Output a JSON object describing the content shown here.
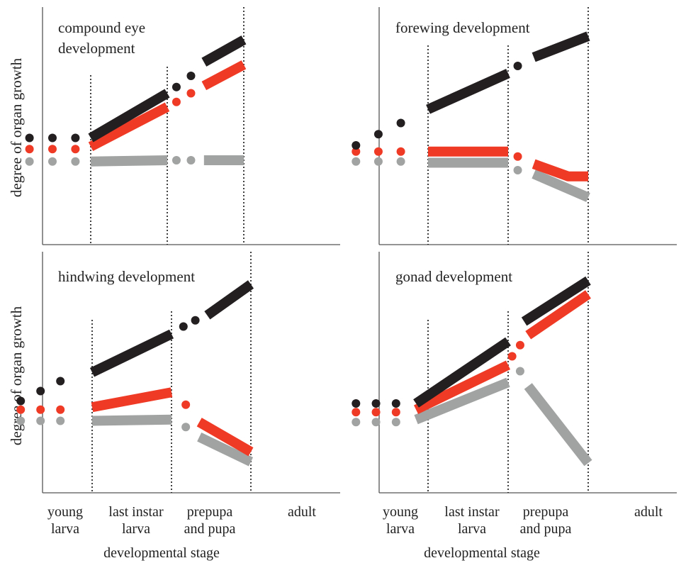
{
  "chart_data": {
    "type": "line",
    "ylabel": "degree of organ growth",
    "xlabel": "developmental stage",
    "stages": [
      {
        "key": "young",
        "lines": [
          "young",
          "larva"
        ]
      },
      {
        "key": "last",
        "lines": [
          "last instar",
          "larva"
        ]
      },
      {
        "key": "prepupa",
        "lines": [
          "prepupa",
          "and pupa"
        ]
      },
      {
        "key": "adult",
        "lines": [
          "adult"
        ]
      }
    ],
    "x_scale_note": "x in stage units: 0 = start of young larva, 1 = start of last instar larva, 2 = start of prepupa and pupa, 3 = adult",
    "colors": {
      "black": "#231f20",
      "red": "#ef3b26",
      "grey": "#a1a3a2"
    },
    "panels": [
      {
        "id": "compound-eye",
        "title_lines": [
          "compound eye",
          "development"
        ],
        "series": [
          {
            "color": "black",
            "dots": [
              [
                0.2,
                4.3
              ],
              [
                0.5,
                4.3
              ],
              [
                0.8,
                4.3
              ]
            ],
            "segments": [
              [
                [
                  1.0,
                  4.3
                ],
                [
                  2.0,
                  6.1
                ]
              ],
              [
                [
                  2.48,
                  7.35
                ],
                [
                  3.0,
                  8.25
                ]
              ]
            ],
            "mid_dots": [
              [
                2.12,
                6.35
              ],
              [
                2.31,
                6.8
              ]
            ]
          },
          {
            "color": "red",
            "dots": [
              [
                0.2,
                3.85
              ],
              [
                0.5,
                3.85
              ],
              [
                0.8,
                3.85
              ]
            ],
            "segments": [
              [
                [
                  1.0,
                  3.95
                ],
                [
                  2.0,
                  5.55
                ]
              ],
              [
                [
                  2.48,
                  6.4
                ],
                [
                  3.0,
                  7.25
                ]
              ]
            ],
            "mid_dots": [
              [
                2.12,
                5.75
              ],
              [
                2.31,
                6.1
              ]
            ]
          },
          {
            "color": "grey",
            "dots": [
              [
                0.2,
                3.35
              ],
              [
                0.5,
                3.35
              ],
              [
                0.8,
                3.35
              ]
            ],
            "segments": [
              [
                [
                  1.0,
                  3.35
                ],
                [
                  2.0,
                  3.4
                ]
              ],
              [
                [
                  2.48,
                  3.4
                ],
                [
                  3.0,
                  3.4
                ]
              ]
            ],
            "mid_dots": [
              [
                2.12,
                3.4
              ],
              [
                2.31,
                3.4
              ]
            ]
          }
        ]
      },
      {
        "id": "forewing",
        "title_lines": [
          "forewing development"
        ],
        "series": [
          {
            "color": "black",
            "dots": [
              [
                0.1,
                4.0
              ],
              [
                0.38,
                4.45
              ],
              [
                0.66,
                4.9
              ]
            ],
            "segments": [
              [
                [
                  1.0,
                  5.45
                ],
                [
                  2.0,
                  6.9
                ]
              ],
              [
                [
                  2.32,
                  7.55
                ],
                [
                  3.0,
                  8.4
                ]
              ]
            ],
            "mid_dots": [
              [
                2.12,
                7.2
              ]
            ]
          },
          {
            "color": "red",
            "dots": [
              [
                0.1,
                3.75
              ],
              [
                0.38,
                3.75
              ],
              [
                0.66,
                3.75
              ]
            ],
            "segments": [
              [
                [
                  1.0,
                  3.75
                ],
                [
                  2.0,
                  3.75
                ]
              ],
              [
                [
                  2.32,
                  3.25
                ],
                [
                  2.75,
                  2.75
                ],
                [
                  3.0,
                  2.75
                ]
              ]
            ],
            "mid_dots": [
              [
                2.12,
                3.55
              ]
            ]
          },
          {
            "color": "grey",
            "dots": [
              [
                0.1,
                3.35
              ],
              [
                0.38,
                3.35
              ],
              [
                0.66,
                3.35
              ]
            ],
            "segments": [
              [
                [
                  1.0,
                  3.3
                ],
                [
                  2.0,
                  3.3
                ]
              ],
              [
                [
                  2.32,
                  2.85
                ],
                [
                  3.0,
                  1.9
                ]
              ]
            ],
            "mid_dots": [
              [
                2.12,
                3.0
              ]
            ]
          }
        ]
      },
      {
        "id": "hindwing",
        "title_lines": [
          "hindwing development"
        ],
        "series": [
          {
            "color": "black",
            "dots": [
              [
                0.1,
                3.7
              ],
              [
                0.35,
                4.1
              ],
              [
                0.6,
                4.5
              ]
            ],
            "segments": [
              [
                [
                  1.0,
                  4.85
                ],
                [
                  2.0,
                  6.4
                ]
              ],
              [
                [
                  2.45,
                  7.15
                ],
                [
                  3.0,
                  8.4
                ]
              ]
            ],
            "mid_dots": [
              [
                2.15,
                6.7
              ],
              [
                2.3,
                6.95
              ]
            ]
          },
          {
            "color": "red",
            "dots": [
              [
                0.1,
                3.35
              ],
              [
                0.35,
                3.35
              ],
              [
                0.6,
                3.35
              ]
            ],
            "segments": [
              [
                [
                  1.0,
                  3.45
                ],
                [
                  2.0,
                  4.05
                ]
              ],
              [
                [
                  2.35,
                  2.85
                ],
                [
                  3.0,
                  1.65
                ]
              ]
            ],
            "mid_dots": [
              [
                2.18,
                3.55
              ]
            ]
          },
          {
            "color": "grey",
            "dots": [
              [
                0.1,
                2.9
              ],
              [
                0.35,
                2.9
              ],
              [
                0.6,
                2.9
              ]
            ],
            "segments": [
              [
                [
                  1.0,
                  2.9
                ],
                [
                  2.0,
                  2.95
                ]
              ],
              [
                [
                  2.35,
                  2.25
                ],
                [
                  3.0,
                  1.25
                ]
              ]
            ],
            "mid_dots": [
              [
                2.18,
                2.65
              ]
            ]
          }
        ]
      },
      {
        "id": "gonad",
        "title_lines": [
          "gonad development"
        ],
        "series": [
          {
            "color": "black",
            "dots": [
              [
                0.1,
                3.6
              ],
              [
                0.35,
                3.6
              ],
              [
                0.6,
                3.6
              ]
            ],
            "segments": [
              [
                [
                  0.85,
                  3.6
                ],
                [
                  2.0,
                  6.1
                ]
              ],
              [
                [
                  2.2,
                  6.9
                ],
                [
                  3.0,
                  8.55
                ]
              ]
            ],
            "mid_dots": []
          },
          {
            "color": "red",
            "dots": [
              [
                0.1,
                3.25
              ],
              [
                0.35,
                3.25
              ],
              [
                0.6,
                3.25
              ]
            ],
            "segments": [
              [
                [
                  0.85,
                  3.35
                ],
                [
                  2.0,
                  5.15
                ]
              ],
              [
                [
                  2.25,
                  6.35
                ],
                [
                  3.0,
                  8.0
                ]
              ]
            ],
            "mid_dots": [
              [
                2.05,
                5.5
              ],
              [
                2.15,
                5.95
              ]
            ]
          },
          {
            "color": "grey",
            "dots": [
              [
                0.1,
                2.85
              ],
              [
                0.35,
                2.85
              ],
              [
                0.6,
                2.85
              ]
            ],
            "segments": [
              [
                [
                  0.85,
                  2.95
                ],
                [
                  2.0,
                  4.45
                ]
              ],
              [
                [
                  2.25,
                  4.3
                ],
                [
                  3.0,
                  1.2
                ]
              ]
            ],
            "mid_dots": [
              [
                2.15,
                4.9
              ]
            ]
          }
        ]
      }
    ]
  }
}
